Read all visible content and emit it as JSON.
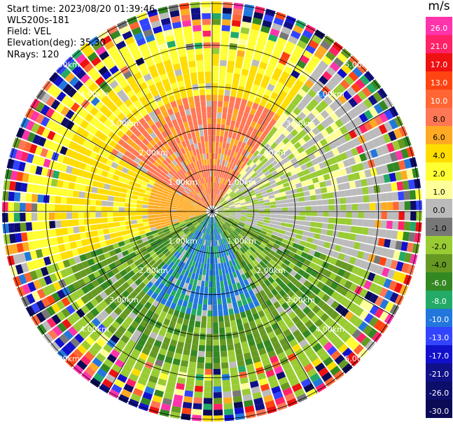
{
  "header": {
    "start_time": "Start time: 2023/08/20 01:39:46",
    "device": "WLS200s-181",
    "field": "Field: VEL",
    "elevation": "Elevation(deg): 35.30",
    "nrays": "NRays: 120"
  },
  "colorbar": {
    "unit": "m/s",
    "labels": [
      "26.0",
      "21.0",
      "17.0",
      "13.0",
      "10.0",
      "8.0",
      "6.0",
      "4.0",
      "2.0",
      "1.0",
      "0.0",
      "-1.0",
      "-2.0",
      "-4.0",
      "-6.0",
      "-8.0",
      "-10.0",
      "-13.0",
      "-17.0",
      "-21.0",
      "-26.0",
      "-30.0"
    ],
    "colors": [
      "#ff33aa",
      "#ff2266",
      "#ee1111",
      "#ff4411",
      "#ff6633",
      "#ff7755",
      "#ffaa22",
      "#ffdd00",
      "#ffff33",
      "#ffff99",
      "#bbbbbb",
      "#777777",
      "#99cc33",
      "#669922",
      "#338822",
      "#22aa66",
      "#2277dd",
      "#3344ff",
      "#1111cc",
      "#101088",
      "#0d0d6a",
      "#0a0a55"
    ]
  },
  "chart_data": {
    "type": "ppi",
    "field": "VEL",
    "units": "m/s",
    "nrays": 120,
    "range_rings_km": [
      1.0,
      2.0,
      3.0,
      4.0,
      5.0
    ],
    "range_labels": [
      "1.00km",
      "2.00km",
      "3.00km",
      "4.00km",
      "5.00km"
    ],
    "max_range_km": 5.0,
    "colorbar_range": [
      -30.0,
      26.0
    ]
  }
}
